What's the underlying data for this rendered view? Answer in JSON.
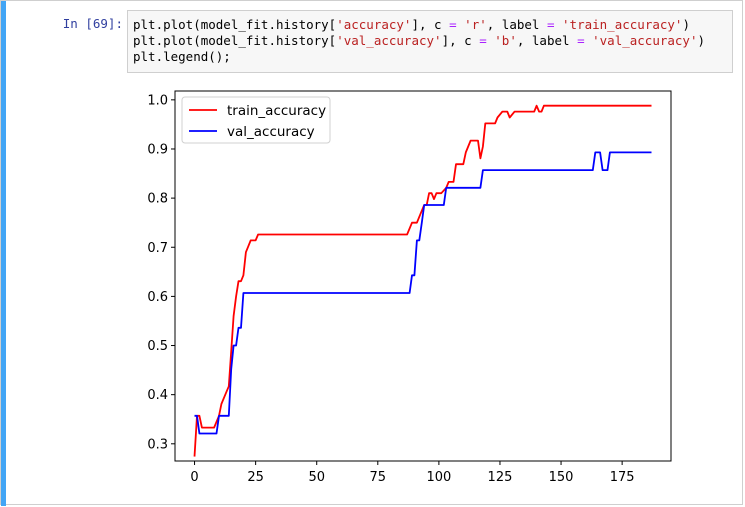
{
  "cell": {
    "prompt": "In [69]:",
    "code_lines": [
      {
        "parts": [
          {
            "t": "plt.plot(model_fit.history[",
            "c": ""
          },
          {
            "t": "'accuracy'",
            "c": "str"
          },
          {
            "t": "], c ",
            "c": ""
          },
          {
            "t": "=",
            "c": "op"
          },
          {
            "t": " ",
            "c": ""
          },
          {
            "t": "'r'",
            "c": "str"
          },
          {
            "t": ", label ",
            "c": ""
          },
          {
            "t": "=",
            "c": "op"
          },
          {
            "t": " ",
            "c": ""
          },
          {
            "t": "'train_accuracy'",
            "c": "str"
          },
          {
            "t": ")",
            "c": ""
          }
        ]
      },
      {
        "parts": [
          {
            "t": "plt.plot(model_fit.history[",
            "c": ""
          },
          {
            "t": "'val_accuracy'",
            "c": "str"
          },
          {
            "t": "], c ",
            "c": ""
          },
          {
            "t": "=",
            "c": "op"
          },
          {
            "t": " ",
            "c": ""
          },
          {
            "t": "'b'",
            "c": "str"
          },
          {
            "t": ", label ",
            "c": ""
          },
          {
            "t": "=",
            "c": "op"
          },
          {
            "t": " ",
            "c": ""
          },
          {
            "t": "'val_accuracy'",
            "c": "str"
          },
          {
            "t": ")",
            "c": ""
          }
        ]
      },
      {
        "parts": [
          {
            "t": "plt.legend();",
            "c": ""
          }
        ]
      }
    ],
    "accent_color": "#42a5f5",
    "prompt_color": "#303f9f"
  },
  "chart_data": {
    "type": "line",
    "title": "",
    "xlabel": "",
    "ylabel": "",
    "xlim": [
      -8,
      195
    ],
    "ylim": [
      0.265,
      1.018
    ],
    "xticks": [
      0,
      25,
      50,
      75,
      100,
      125,
      150,
      175
    ],
    "yticks": [
      0.3,
      0.4,
      0.5,
      0.6,
      0.7,
      0.8,
      0.9,
      1.0
    ],
    "xtick_labels": [
      "0",
      "25",
      "50",
      "75",
      "100",
      "125",
      "150",
      "175"
    ],
    "ytick_labels": [
      "0.3",
      "0.4",
      "0.5",
      "0.6",
      "0.7",
      "0.8",
      "0.9",
      "1.0"
    ],
    "grid": false,
    "legend": "upper left",
    "series": [
      {
        "name": "train_accuracy",
        "color": "#ff0000",
        "points": [
          [
            0,
            0.274
          ],
          [
            1,
            0.357
          ],
          [
            2,
            0.357
          ],
          [
            3,
            0.333
          ],
          [
            4,
            0.333
          ],
          [
            8,
            0.333
          ],
          [
            10,
            0.357
          ],
          [
            11,
            0.381
          ],
          [
            13,
            0.405
          ],
          [
            14,
            0.417
          ],
          [
            15,
            0.488
          ],
          [
            16,
            0.56
          ],
          [
            17,
            0.6
          ],
          [
            18,
            0.631
          ],
          [
            19,
            0.631
          ],
          [
            20,
            0.643
          ],
          [
            21,
            0.69
          ],
          [
            22,
            0.702
          ],
          [
            23,
            0.714
          ],
          [
            24,
            0.714
          ],
          [
            25,
            0.714
          ],
          [
            26,
            0.726
          ],
          [
            87,
            0.726
          ],
          [
            89,
            0.75
          ],
          [
            91,
            0.75
          ],
          [
            92,
            0.762
          ],
          [
            94,
            0.786
          ],
          [
            95,
            0.786
          ],
          [
            96,
            0.81
          ],
          [
            97,
            0.81
          ],
          [
            98,
            0.798
          ],
          [
            99,
            0.81
          ],
          [
            101,
            0.81
          ],
          [
            103,
            0.821
          ],
          [
            104,
            0.833
          ],
          [
            106,
            0.833
          ],
          [
            107,
            0.869
          ],
          [
            110,
            0.869
          ],
          [
            111,
            0.893
          ],
          [
            113,
            0.917
          ],
          [
            116,
            0.917
          ],
          [
            117,
            0.881
          ],
          [
            118,
            0.905
          ],
          [
            119,
            0.952
          ],
          [
            123,
            0.952
          ],
          [
            124,
            0.964
          ],
          [
            126,
            0.976
          ],
          [
            128,
            0.976
          ],
          [
            129,
            0.964
          ],
          [
            131,
            0.976
          ],
          [
            139,
            0.976
          ],
          [
            140,
            0.988
          ],
          [
            141,
            0.976
          ],
          [
            142,
            0.976
          ],
          [
            143,
            0.988
          ],
          [
            187,
            0.988
          ]
        ]
      },
      {
        "name": "val_accuracy",
        "color": "#0000ff",
        "points": [
          [
            0,
            0.357
          ],
          [
            1,
            0.357
          ],
          [
            2,
            0.321
          ],
          [
            9,
            0.321
          ],
          [
            10,
            0.357
          ],
          [
            14,
            0.357
          ],
          [
            15,
            0.452
          ],
          [
            16,
            0.5
          ],
          [
            17,
            0.5
          ],
          [
            18,
            0.536
          ],
          [
            19,
            0.536
          ],
          [
            20,
            0.607
          ],
          [
            88,
            0.607
          ],
          [
            89,
            0.643
          ],
          [
            90,
            0.643
          ],
          [
            91,
            0.714
          ],
          [
            92,
            0.714
          ],
          [
            93,
            0.75
          ],
          [
            94,
            0.786
          ],
          [
            102,
            0.786
          ],
          [
            103,
            0.821
          ],
          [
            117,
            0.821
          ],
          [
            118,
            0.857
          ],
          [
            163,
            0.857
          ],
          [
            164,
            0.893
          ],
          [
            166,
            0.893
          ],
          [
            167,
            0.857
          ],
          [
            169,
            0.857
          ],
          [
            170,
            0.893
          ],
          [
            187,
            0.893
          ]
        ]
      }
    ]
  }
}
